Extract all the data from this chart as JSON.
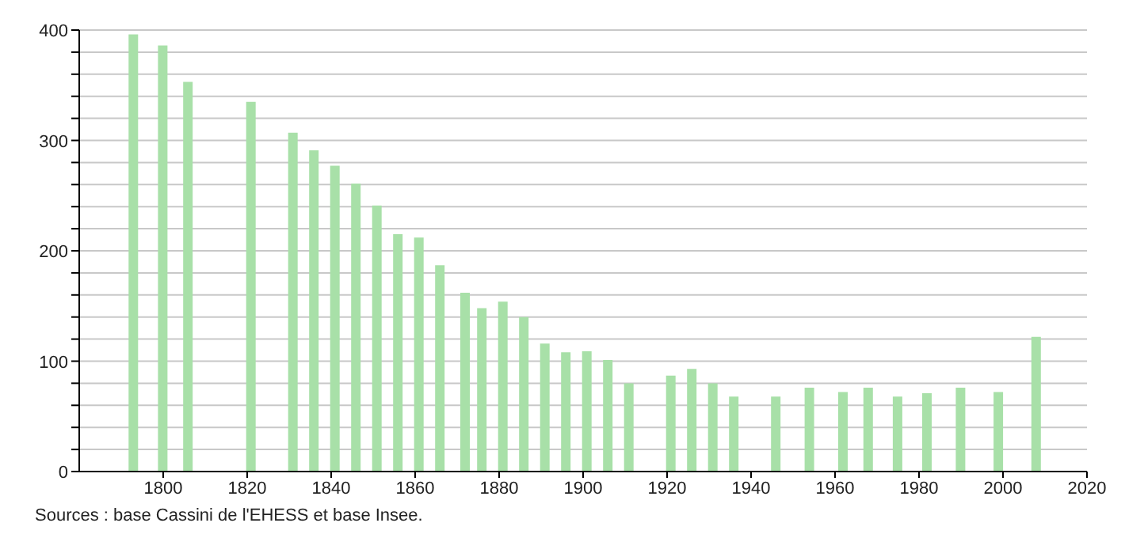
{
  "chart_data": {
    "type": "bar",
    "x": [
      1793,
      1800,
      1806,
      1821,
      1831,
      1836,
      1841,
      1846,
      1851,
      1856,
      1861,
      1866,
      1872,
      1876,
      1881,
      1886,
      1891,
      1896,
      1901,
      1906,
      1911,
      1921,
      1926,
      1931,
      1936,
      1946,
      1954,
      1962,
      1968,
      1975,
      1982,
      1990,
      1999,
      2008
    ],
    "values": [
      396,
      386,
      353,
      335,
      307,
      291,
      277,
      261,
      241,
      215,
      212,
      187,
      162,
      148,
      154,
      140,
      116,
      108,
      109,
      101,
      80,
      87,
      93,
      80,
      68,
      68,
      76,
      72,
      76,
      68,
      71,
      76,
      72,
      122
    ],
    "color": "#a8e0a8",
    "xlim": [
      1780,
      2020
    ],
    "xticks": [
      1800,
      1820,
      1840,
      1860,
      1880,
      1900,
      1920,
      1940,
      1960,
      1980,
      2000,
      2020
    ],
    "ylim": [
      0,
      400
    ],
    "yticks": [
      0,
      {
        "value": 20,
        "label": null
      },
      {
        "value": 40,
        "label": null
      },
      {
        "value": 60,
        "label": null
      },
      {
        "value": 80,
        "label": null
      },
      100,
      {
        "value": 120,
        "label": null
      },
      {
        "value": 140,
        "label": null
      },
      {
        "value": 160,
        "label": null
      },
      {
        "value": 180,
        "label": null
      },
      200,
      {
        "value": 220,
        "label": null
      },
      {
        "value": 240,
        "label": null
      },
      {
        "value": 260,
        "label": null
      },
      {
        "value": 280,
        "label": null
      },
      300,
      {
        "value": 320,
        "label": null
      },
      {
        "value": 340,
        "label": null
      },
      {
        "value": 360,
        "label": null
      },
      {
        "value": 380,
        "label": null
      },
      400
    ],
    "grid": "y",
    "annotations": [
      "Sources : base Cassini de l'EHESS et base Insee."
    ]
  }
}
